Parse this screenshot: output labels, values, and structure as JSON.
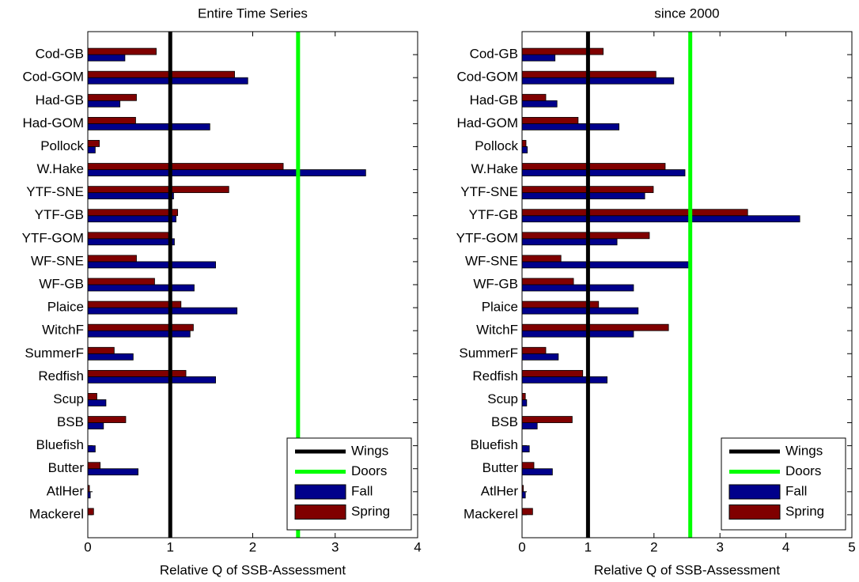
{
  "chart_data": [
    {
      "type": "bar",
      "orientation": "horizontal",
      "title": "Entire Time Series",
      "x_label": "Relative Q of SSB-Assessment",
      "categories": [
        "Cod-GB",
        "Cod-GOM",
        "Had-GB",
        "Had-GOM",
        "Pollock",
        "W.Hake",
        "YTF-SNE",
        "YTF-GB",
        "YTF-GOM",
        "WF-SNE",
        "WF-GB",
        "Plaice",
        "WitchF",
        "SummerF",
        "Redfish",
        "Scup",
        "BSB",
        "Bluefish",
        "Butter",
        "AtlHer",
        "Mackerel"
      ],
      "series": [
        {
          "name": "Fall",
          "color": "#00008b",
          "values": [
            0.45,
            1.94,
            0.39,
            1.48,
            0.09,
            3.37,
            1.04,
            1.07,
            1.05,
            1.55,
            1.29,
            1.81,
            1.24,
            0.55,
            1.55,
            0.22,
            0.19,
            0.09,
            0.61,
            0.03,
            0
          ]
        },
        {
          "name": "Spring",
          "color": "#800000",
          "values": [
            0.83,
            1.78,
            0.59,
            0.58,
            0.14,
            2.37,
            1.71,
            1.09,
            0.98,
            0.59,
            0.81,
            1.13,
            1.28,
            0.32,
            1.19,
            0.11,
            0.46,
            0,
            0.15,
            0.02,
            0.07
          ]
        }
      ],
      "reference_lines": [
        {
          "name": "Wings",
          "color": "#000000",
          "value": 1
        },
        {
          "name": "Doors",
          "color": "#00ff00",
          "value": 2.55
        }
      ],
      "xlim": [
        0,
        4
      ],
      "xticks": [
        0,
        1,
        2,
        3,
        4
      ],
      "legend": "lower right"
    },
    {
      "type": "bar",
      "orientation": "horizontal",
      "title": "since 2000",
      "x_label": "Relative Q of SSB-Assessment",
      "categories": [
        "Cod-GB",
        "Cod-GOM",
        "Had-GB",
        "Had-GOM",
        "Pollock",
        "W.Hake",
        "YTF-SNE",
        "YTF-GB",
        "YTF-GOM",
        "WF-SNE",
        "WF-GB",
        "Plaice",
        "WitchF",
        "SummerF",
        "Redfish",
        "Scup",
        "BSB",
        "Bluefish",
        "Butter",
        "AtlHer",
        "Mackerel"
      ],
      "series": [
        {
          "name": "Fall",
          "color": "#00008b",
          "values": [
            0.5,
            2.3,
            0.53,
            1.47,
            0.08,
            2.47,
            1.86,
            4.21,
            1.44,
            2.55,
            1.69,
            1.76,
            1.69,
            0.55,
            1.29,
            0.07,
            0.23,
            0.11,
            0.46,
            0.05,
            0
          ]
        },
        {
          "name": "Spring",
          "color": "#800000",
          "values": [
            1.23,
            2.03,
            0.36,
            0.85,
            0.06,
            2.17,
            1.99,
            3.42,
            1.93,
            0.59,
            0.78,
            1.16,
            2.22,
            0.36,
            0.92,
            0.05,
            0.76,
            0,
            0.18,
            0.02,
            0.16
          ]
        }
      ],
      "reference_lines": [
        {
          "name": "Wings",
          "color": "#000000",
          "value": 1
        },
        {
          "name": "Doors",
          "color": "#00ff00",
          "value": 2.55
        }
      ],
      "xlim": [
        0,
        5
      ],
      "xticks": [
        0,
        1,
        2,
        3,
        4,
        5
      ],
      "legend": "lower right"
    }
  ]
}
